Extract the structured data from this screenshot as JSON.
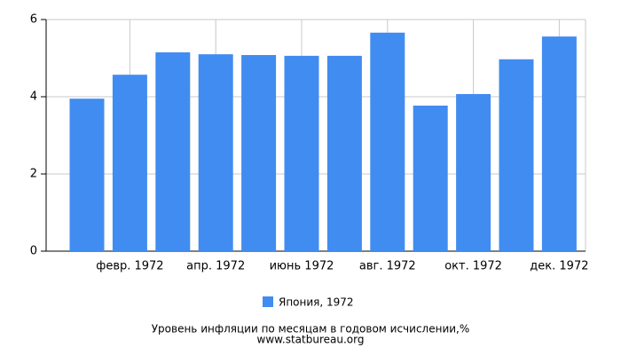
{
  "chart_data": {
    "type": "bar",
    "categories": [
      null,
      "февр. 1972",
      null,
      "апр. 1972",
      null,
      "июнь 1972",
      null,
      "авг. 1972",
      null,
      "окт. 1972",
      null,
      "дек. 1972"
    ],
    "series": [
      {
        "name": "Япония, 1972",
        "color": "#418cf0",
        "values": [
          3.95,
          4.57,
          5.15,
          5.1,
          5.08,
          5.06,
          5.06,
          5.66,
          3.77,
          4.07,
          4.97,
          5.56
        ]
      }
    ],
    "ylim": [
      0,
      6
    ],
    "yticks": [
      0,
      2,
      4,
      6
    ],
    "grid": true,
    "footer": [
      "Уровень инфляции по месяцам в годовом исчислении,%",
      "www.statbureau.org"
    ]
  }
}
